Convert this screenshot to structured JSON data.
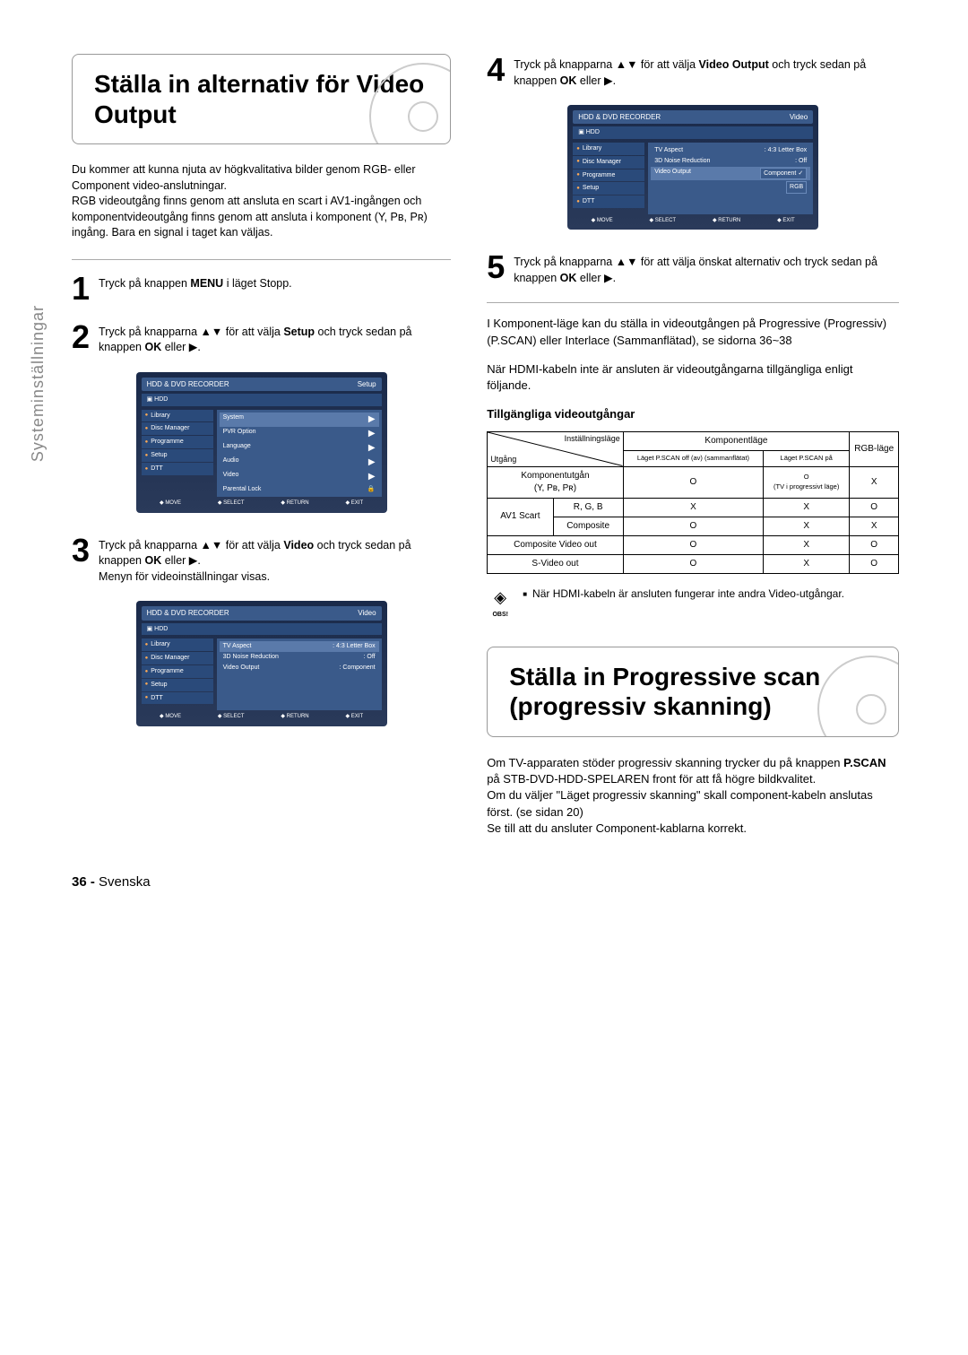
{
  "sidebar_title": "Systeminställningar",
  "title1": "Ställa in alternativ för Video Output",
  "intro": "Du kommer att kunna njuta av högkvalitativa bilder genom RGB- eller Component video-anslutningar.\nRGB videoutgång finns genom att ansluta en scart i AV1-ingången och komponentvideoutgång finns genom att ansluta i komponent (Y, Pʙ, Pʀ) ingång. Bara en signal i taget kan väljas.",
  "steps": {
    "s1": "Tryck på knappen MENU i läget Stopp.",
    "s2": "Tryck på knapparna ▲▼ för att välja Setup och tryck sedan på knappen OK eller ▶.",
    "s3a": "Tryck på knapparna ▲▼ för att välja Video och tryck sedan på knappen OK eller ▶.",
    "s3b": "Menyn för videoinställningar visas.",
    "s4": "Tryck på knapparna ▲▼ för att välja Video Output och tryck sedan på knappen OK eller ▶.",
    "s5": "Tryck på knapparna ▲▼ för att välja önskat alternativ och tryck sedan på knappen OK eller ▶."
  },
  "para1": "I Komponent-läge kan du ställa in videoutgången på Progressive (Progressiv) (P.SCAN) eller Interlace (Sammanflätad), se sidorna 36~38",
  "para2": "När HDMI-kabeln inte är ansluten är videoutgångarna tillgängliga enligt följande.",
  "table_title": "Tillgängliga videoutgångar",
  "table": {
    "h_setting": "Inställningsläge",
    "h_output": "Utgång",
    "h_comp": "Komponentläge",
    "h_pscanoff": "Läget P.SCAN off (av) (sammanflätat)",
    "h_pscanon": "Läget P.SCAN på",
    "h_rgb": "RGB-läge",
    "rows": [
      {
        "label": "Komponentutgån\n(Y, Pʙ, Pʀ)",
        "a": "O",
        "b": "O\n(TV i progressivt läge)",
        "c": "X"
      },
      {
        "label": "AV1 Scart",
        "sub1": "R, G, B",
        "a1": "X",
        "b1": "X",
        "c1": "O",
        "sub2": "Composite",
        "a2": "O",
        "b2": "X",
        "c2": "X"
      },
      {
        "label": "Composite Video out",
        "a": "O",
        "b": "X",
        "c": "O"
      },
      {
        "label": "S-Video out",
        "a": "O",
        "b": "X",
        "c": "O"
      }
    ]
  },
  "note_label": "OBS!",
  "note_text": "När HDMI-kabeln är ansluten fungerar inte andra Video-utgångar.",
  "title2": "Ställa in Progressive scan (progressiv skanning)",
  "prog_p1": "Om TV-apparaten stöder progressiv skanning trycker du på knappen P.SCAN på STB-DVD-HDD-SPELAREN front för att få högre bildkvalitet.",
  "prog_p2": "Om du väljer \"Läget progressiv skanning\" skall component-kabeln anslutas först. (se sidan 20)",
  "prog_p3": "Se till att du ansluter Component-kablarna korrekt.",
  "page": {
    "num": "36 -",
    "lang": "Svenska"
  },
  "screens": {
    "common": {
      "title": "HDD & DVD RECORDER",
      "sub": "HDD",
      "nav": [
        "Library",
        "Disc Manager",
        "Programme",
        "Setup",
        "DTT"
      ],
      "footer": [
        "MOVE",
        "SELECT",
        "RETURN",
        "EXIT"
      ]
    },
    "setup": {
      "corner": "Setup",
      "items": [
        "System",
        "PVR Option",
        "Language",
        "Audio",
        "Video",
        "Parental Lock"
      ]
    },
    "video1": {
      "corner": "Video",
      "items": [
        {
          "l": "TV Aspect",
          "r": ": 4:3 Letter Box"
        },
        {
          "l": "3D Noise Reduction",
          "r": ": Off"
        },
        {
          "l": "Video Output",
          "r": ": Component"
        }
      ]
    },
    "video2": {
      "corner": "Video",
      "items": [
        {
          "l": "TV Aspect",
          "r": ": 4:3 Letter Box"
        },
        {
          "l": "3D Noise Reduction",
          "r": ": Off"
        },
        {
          "l": "Video Output",
          "r": "Component"
        }
      ],
      "dropdown": [
        "Component",
        "RGB"
      ]
    }
  }
}
